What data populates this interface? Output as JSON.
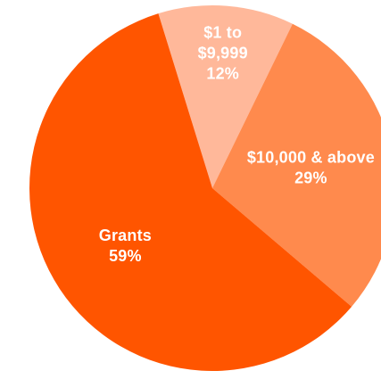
{
  "chart_data": {
    "type": "pie",
    "title": "",
    "legend": "none",
    "slices": [
      {
        "label_lines": [
          "$1 to",
          "$9,999"
        ],
        "value": 12,
        "value_label": "12%",
        "color": "#ffb89a"
      },
      {
        "label_lines": [
          "$10,000 & above"
        ],
        "value": 29,
        "value_label": "29%",
        "color": "#ff8a4d"
      },
      {
        "label_lines": [
          "Grants"
        ],
        "value": 59,
        "value_label": "59%",
        "color": "#ff5500"
      }
    ]
  }
}
